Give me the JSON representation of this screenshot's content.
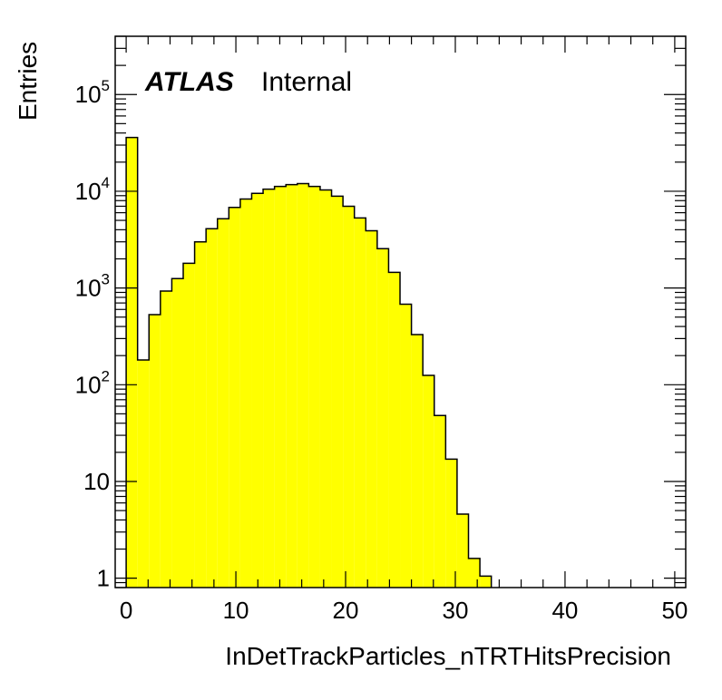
{
  "chart_data": {
    "type": "bar",
    "style": "histogram",
    "title": "",
    "xlabel": "InDetTrackParticles_nTRTHitsPrecision",
    "ylabel": "Entries",
    "xlim": [
      -1,
      51
    ],
    "ylim": [
      0.8,
      400000
    ],
    "y_scale": "log",
    "grid": false,
    "fill_color": "#ffff00",
    "line_color": "#000000",
    "bin_width": 1.04,
    "x_ticks": [
      0,
      10,
      20,
      30,
      40,
      50
    ],
    "x_tick_labels": [
      "0",
      "10",
      "20",
      "30",
      "40",
      "50"
    ],
    "y_ticks": [
      {
        "base": "10",
        "exp": "5",
        "value": 100000
      },
      {
        "base": "10",
        "exp": "4",
        "value": 10000
      },
      {
        "base": "10",
        "exp": "3",
        "value": 1000
      },
      {
        "base": "10",
        "exp": "2",
        "value": 100
      },
      {
        "base": "10",
        "exp": "",
        "value": 10
      },
      {
        "base": "1",
        "exp": "",
        "value": 1
      }
    ],
    "bin_edges": [
      0,
      1.04,
      2.08,
      3.12,
      4.16,
      5.2,
      6.24,
      7.28,
      8.32,
      9.36,
      10.4,
      11.44,
      12.48,
      13.52,
      14.56,
      15.6,
      16.64,
      17.68,
      18.72,
      19.76,
      20.8,
      21.84,
      22.88,
      23.92,
      24.96,
      26.0,
      27.04,
      28.08,
      29.12,
      30.16,
      31.2,
      32.24,
      33.28,
      34.32,
      35.36,
      36.4,
      37.44,
      38.48,
      39.52,
      40.56,
      41.6,
      42.64,
      43.68,
      44.72,
      45.76,
      46.8,
      47.84,
      48.88,
      49.92,
      50.96
    ],
    "values": [
      36000,
      180,
      530,
      930,
      1250,
      1800,
      3000,
      4100,
      5200,
      6800,
      8300,
      9500,
      10500,
      11200,
      11700,
      12000,
      11200,
      10300,
      8900,
      7000,
      5300,
      3900,
      2550,
      1450,
      680,
      330,
      125,
      48,
      17,
      4.6,
      1.6,
      1.05,
      0,
      0,
      0,
      0,
      0,
      0,
      0,
      0,
      0,
      0,
      0,
      0,
      0,
      0,
      0,
      0,
      0
    ],
    "annotations": {
      "experiment": "ATLAS",
      "status": "Internal"
    }
  }
}
